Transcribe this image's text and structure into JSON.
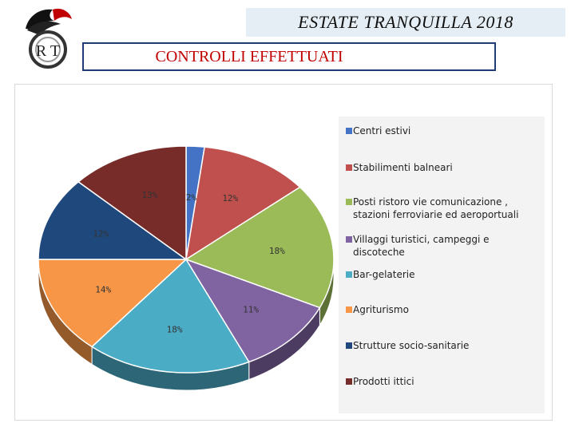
{
  "header": {
    "title": "ESTATE TRANQUILLA 2018",
    "subtitle": "CONTROLLI EFFETTUATI"
  },
  "logo": {
    "name": "carabinieri-crest-icon",
    "letters": "R T"
  },
  "chart_data": {
    "type": "pie",
    "categories": [
      "Centri estivi",
      "Stabilimenti balneari",
      "Posti ristoro vie comunicazione , stazioni ferroviarie ed aeroportuali",
      "Villaggi turistici, campeggi e discoteche",
      "Bar-gelaterie",
      "Agriturismo",
      "Strutture socio-sanitarie",
      "Prodotti ittici"
    ],
    "values": [
      2,
      12,
      18,
      11,
      18,
      14,
      12,
      13
    ],
    "labels": [
      "2%",
      "12%",
      "18%",
      "11%",
      "18%",
      "14%",
      "12%",
      "13%"
    ],
    "colors": [
      "#4472c4",
      "#c0504d",
      "#9bbb59",
      "#8064a2",
      "#4bacc6",
      "#f79646",
      "#1f497d",
      "#772c2a"
    ],
    "legend_position": "right"
  }
}
